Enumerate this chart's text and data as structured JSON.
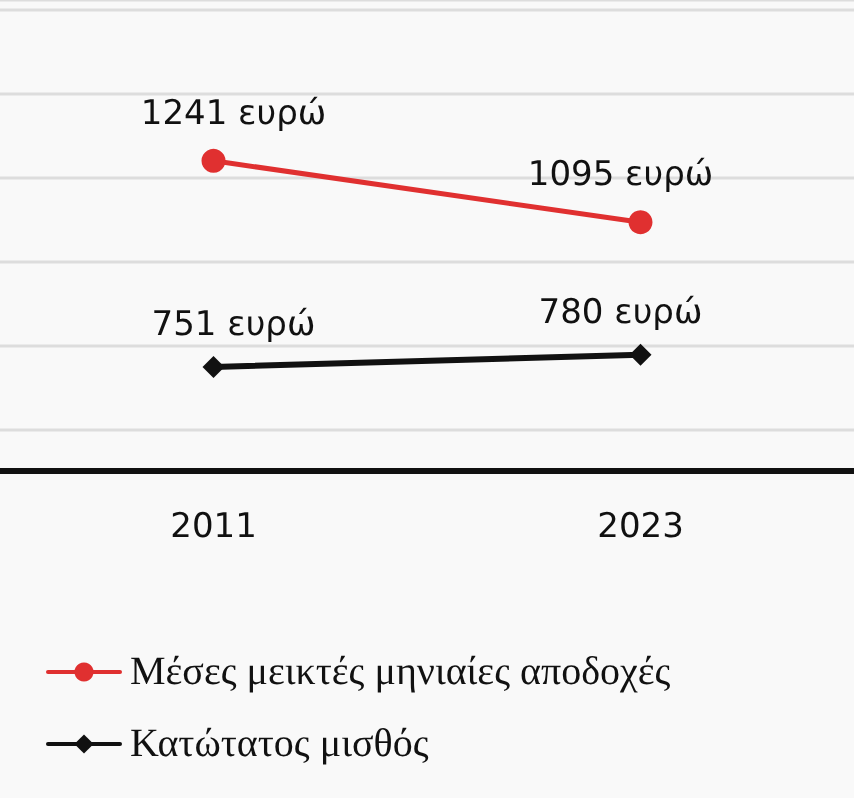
{
  "chart_data": {
    "type": "line",
    "categories": [
      "2011",
      "2023"
    ],
    "series": [
      {
        "name": "Μέσες μεικτές μηνιαίες αποδοχές",
        "color": "#e03030",
        "marker": "circle",
        "values": [
          1241,
          1095
        ],
        "value_labels": [
          "1241 ευρώ",
          "1095 ευρώ"
        ]
      },
      {
        "name": "Κατώτατος μισθός",
        "color": "#111111",
        "marker": "diamond",
        "values": [
          751,
          780
        ],
        "value_labels": [
          "751 ευρώ",
          "780 ευρώ"
        ]
      }
    ],
    "tick_labels": "x",
    "grid": "y",
    "legend": "bottom",
    "line_style": "solid"
  }
}
